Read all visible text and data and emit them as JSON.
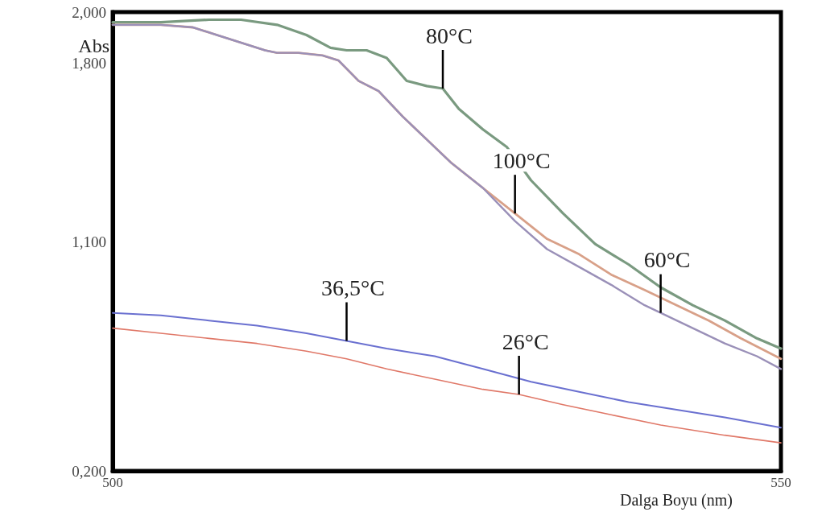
{
  "chart_data": {
    "type": "line",
    "xlabel": "Dalga Boyu (nm)",
    "ylabel": "Abs",
    "xlim": [
      500,
      550
    ],
    "xticks": [
      500,
      550
    ],
    "ylim": [
      0.2,
      2.0
    ],
    "yticks": [
      {
        "value": 0.2,
        "label": "0,200"
      },
      {
        "value": 1.1,
        "label": "1,100"
      },
      {
        "value": 1.8,
        "label": "1,800"
      },
      {
        "value": 2.0,
        "label": "2,000"
      }
    ],
    "marker": "none",
    "line_style": "solid",
    "series": [
      {
        "color": "#7a9a80",
        "x": [
          500,
          503.6,
          507.2,
          509.6,
          512.3,
          514.5,
          516.3,
          517.5,
          519.0,
          520.5,
          522.0,
          523.5,
          524.7,
          525.9,
          527.7,
          529.5,
          531.3,
          533.7,
          536.1,
          538.6,
          541.0,
          543.4,
          545.8,
          548.2,
          550
        ],
        "values": [
          1.96,
          1.96,
          1.97,
          1.97,
          1.95,
          1.91,
          1.86,
          1.85,
          1.85,
          1.82,
          1.73,
          1.71,
          1.7,
          1.62,
          1.54,
          1.47,
          1.34,
          1.21,
          1.09,
          1.01,
          0.92,
          0.85,
          0.79,
          0.72,
          0.68
        ]
      },
      {
        "color": "#d8a088",
        "x": [
          500,
          503.6,
          506.0,
          507.8,
          509.6,
          511.4,
          512.3,
          513.9,
          515.7,
          516.9,
          518.4,
          519.9,
          521.7,
          523.5,
          525.3,
          527.7,
          530.1,
          532.5,
          534.9,
          537.3,
          539.8,
          542.2,
          544.6,
          547.0,
          550
        ],
        "values": [
          1.95,
          1.95,
          1.94,
          1.91,
          1.88,
          1.85,
          1.84,
          1.84,
          1.83,
          1.81,
          1.73,
          1.69,
          1.59,
          1.5,
          1.41,
          1.31,
          1.21,
          1.11,
          1.05,
          0.97,
          0.91,
          0.85,
          0.79,
          0.72,
          0.64
        ]
      },
      {
        "color": "#9a90b8",
        "x": [
          500,
          503.6,
          506.0,
          507.8,
          509.6,
          511.4,
          512.3,
          513.9,
          515.7,
          516.9,
          518.4,
          519.9,
          521.7,
          523.5,
          525.3,
          527.7,
          530.1,
          532.5,
          534.9,
          537.3,
          539.8,
          541.0,
          543.4,
          545.8,
          548.2,
          550
        ],
        "values": [
          1.95,
          1.95,
          1.94,
          1.91,
          1.88,
          1.85,
          1.84,
          1.84,
          1.83,
          1.81,
          1.73,
          1.69,
          1.59,
          1.5,
          1.41,
          1.31,
          1.18,
          1.07,
          1.0,
          0.93,
          0.85,
          0.82,
          0.76,
          0.7,
          0.65,
          0.6
        ]
      },
      {
        "color": "#6a70d0",
        "x": [
          500,
          503.6,
          507.2,
          510.8,
          514.5,
          517.5,
          520.5,
          524.1,
          527.7,
          531.3,
          534.9,
          538.6,
          542.2,
          545.8,
          550
        ],
        "values": [
          0.82,
          0.81,
          0.79,
          0.77,
          0.74,
          0.71,
          0.68,
          0.65,
          0.6,
          0.55,
          0.51,
          0.47,
          0.44,
          0.41,
          0.37
        ]
      },
      {
        "color": "#e07868",
        "x": [
          500,
          503.6,
          507.2,
          510.8,
          514.5,
          517.5,
          520.5,
          524.1,
          527.7,
          530.4,
          533.7,
          537.3,
          541.0,
          545.8,
          550
        ],
        "values": [
          0.76,
          0.74,
          0.72,
          0.7,
          0.67,
          0.64,
          0.6,
          0.56,
          0.52,
          0.5,
          0.46,
          0.42,
          0.38,
          0.34,
          0.31
        ]
      }
    ],
    "annotations": [
      {
        "text": "80°C",
        "x": 524.7,
        "y": 1.7
      },
      {
        "text": "100°C",
        "x": 530.1,
        "y": 1.21
      },
      {
        "text": "60°C",
        "x": 541.0,
        "y": 0.82
      },
      {
        "text": "36,5°C",
        "x": 517.5,
        "y": 0.71
      },
      {
        "text": "26°C",
        "x": 530.4,
        "y": 0.5
      }
    ]
  }
}
